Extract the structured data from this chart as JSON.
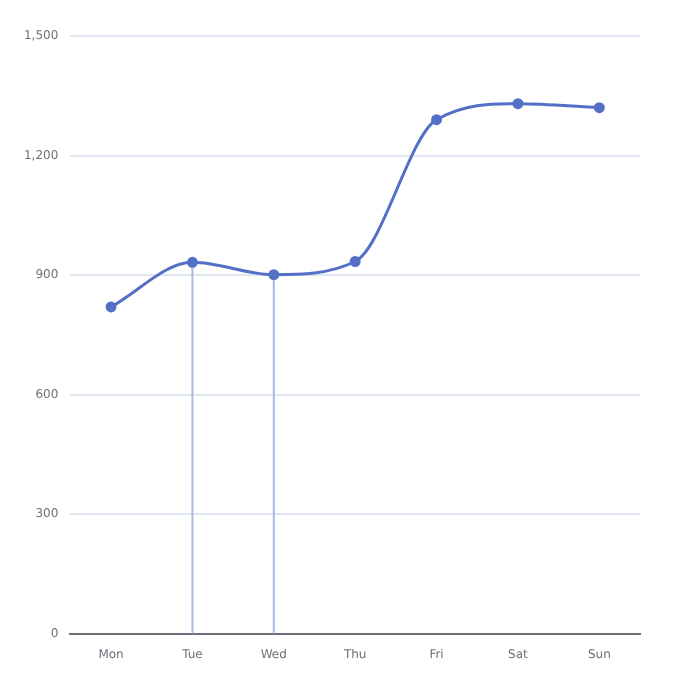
{
  "chart_data": {
    "type": "line",
    "categories": [
      "Mon",
      "Tue",
      "Wed",
      "Thu",
      "Fri",
      "Sat",
      "Sun"
    ],
    "series": [
      {
        "color": "#5470c6",
        "values": [
          820,
          932,
          901,
          934,
          1290,
          1330,
          1320
        ]
      }
    ],
    "ylim": [
      0,
      1500
    ],
    "yticks": [
      0,
      {
        "value": 300,
        "label": "300"
      },
      {
        "value": 600,
        "label": "600"
      },
      {
        "value": 900,
        "label": "900"
      },
      {
        "value": 1200,
        "label": "1,200"
      },
      {
        "value": 1500,
        "label": "1,500"
      }
    ],
    "grid": "y",
    "legend": false,
    "marker": "circle",
    "line_style": "solid",
    "ref_lines": [
      {
        "axis": "x",
        "value": "Tue",
        "color": "#a9b7e6"
      },
      {
        "axis": "x",
        "value": "Wed",
        "color": "#a9b7e6"
      }
    ]
  }
}
